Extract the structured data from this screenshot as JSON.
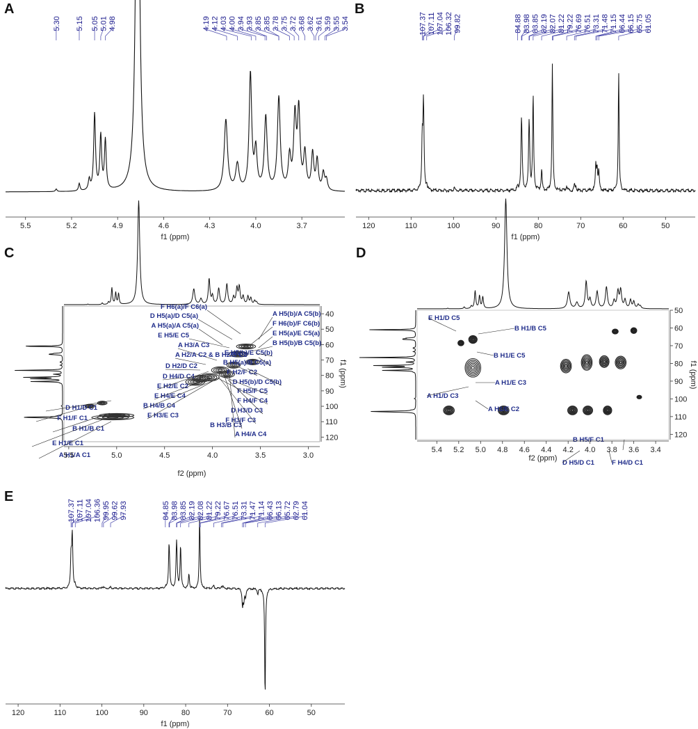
{
  "panels": [
    {
      "id": "A",
      "label": "A"
    },
    {
      "id": "B",
      "label": "B"
    },
    {
      "id": "C",
      "label": "C"
    },
    {
      "id": "D",
      "label": "D"
    },
    {
      "id": "E",
      "label": "E"
    }
  ],
  "chart_data": [
    {
      "panel": "A",
      "type": "line",
      "title": "",
      "xlabel": "f1 (ppm)",
      "ylabel": "",
      "xlim": [
        5.63,
        3.42
      ],
      "x_ticks": [
        "5.5",
        "5.2",
        "4.9",
        "4.6",
        "4.3",
        "4.0",
        "3.7"
      ],
      "peak_labels": [
        "5.30",
        "5.15",
        "5.05",
        "5.01",
        "4.98",
        "4.19",
        "4.12",
        "4.03",
        "4.00",
        "3.94",
        "3.93",
        "3.85",
        "3.85",
        "3.78",
        "3.75",
        "3.72",
        "3.68",
        "3.62",
        "3.61",
        "3.59",
        "3.55",
        "3.54"
      ],
      "peaks": [
        {
          "x": 5.3,
          "y": 0.012,
          "w": 0.006
        },
        {
          "x": 5.15,
          "y": 0.035,
          "w": 0.006
        },
        {
          "x": 5.085,
          "y": 0.05,
          "w": 0.007
        },
        {
          "x": 5.05,
          "y": 0.355,
          "w": 0.007
        },
        {
          "x": 5.01,
          "y": 0.25,
          "w": 0.007
        },
        {
          "x": 4.98,
          "y": 0.23,
          "w": 0.007
        },
        {
          "x": 4.77,
          "y": 2.2,
          "w": 0.013
        },
        {
          "x": 4.195,
          "y": 0.33,
          "w": 0.013
        },
        {
          "x": 4.12,
          "y": 0.12,
          "w": 0.013
        },
        {
          "x": 4.035,
          "y": 0.54,
          "w": 0.01
        },
        {
          "x": 4.0,
          "y": 0.18,
          "w": 0.01
        },
        {
          "x": 3.935,
          "y": 0.34,
          "w": 0.011
        },
        {
          "x": 3.85,
          "y": 0.43,
          "w": 0.011
        },
        {
          "x": 3.78,
          "y": 0.15,
          "w": 0.01
        },
        {
          "x": 3.745,
          "y": 0.33,
          "w": 0.01
        },
        {
          "x": 3.72,
          "y": 0.36,
          "w": 0.01
        },
        {
          "x": 3.68,
          "y": 0.17,
          "w": 0.01
        },
        {
          "x": 3.63,
          "y": 0.17,
          "w": 0.009
        },
        {
          "x": 3.6,
          "y": 0.14,
          "w": 0.009
        },
        {
          "x": 3.56,
          "y": 0.08,
          "w": 0.009
        },
        {
          "x": 3.54,
          "y": 0.05,
          "w": 0.009
        }
      ]
    },
    {
      "panel": "B",
      "type": "line",
      "title": "",
      "xlabel": "f1 (ppm)",
      "ylabel": "",
      "xlim": [
        123,
        43
      ],
      "x_ticks": [
        "120",
        "110",
        "100",
        "90",
        "80",
        "70",
        "60",
        "50"
      ],
      "peak_labels": [
        "107.37",
        "107.11",
        "107.04",
        "106.32",
        "99.82",
        "84.88",
        "83.98",
        "83.85",
        "82.19",
        "82.07",
        "81.22",
        "79.22",
        "76.69",
        "76.51",
        "73.31",
        "71.48",
        "71.15",
        "66.44",
        "66.15",
        "65.75",
        "61.05"
      ],
      "peaks": [
        {
          "x": 107.37,
          "y": 0.48,
          "w": 0.14
        },
        {
          "x": 107.11,
          "y": 0.45,
          "w": 0.14
        },
        {
          "x": 107.04,
          "y": 0.42,
          "w": 0.14
        },
        {
          "x": 106.32,
          "y": 0.05,
          "w": 0.14
        },
        {
          "x": 99.82,
          "y": 0.03,
          "w": 0.14
        },
        {
          "x": 84.88,
          "y": 0.03,
          "w": 0.14
        },
        {
          "x": 83.98,
          "y": 0.58,
          "w": 0.14
        },
        {
          "x": 83.85,
          "y": 0.2,
          "w": 0.14
        },
        {
          "x": 82.19,
          "y": 0.55,
          "w": 0.14
        },
        {
          "x": 82.07,
          "y": 0.2,
          "w": 0.14
        },
        {
          "x": 81.22,
          "y": 0.9,
          "w": 0.14
        },
        {
          "x": 79.22,
          "y": 0.2,
          "w": 0.14
        },
        {
          "x": 76.69,
          "y": 1.18,
          "w": 0.12
        },
        {
          "x": 76.51,
          "y": 0.1,
          "w": 0.12
        },
        {
          "x": 73.31,
          "y": 0.05,
          "w": 0.14
        },
        {
          "x": 71.48,
          "y": 0.05,
          "w": 0.14
        },
        {
          "x": 71.15,
          "y": 0.04,
          "w": 0.14
        },
        {
          "x": 66.44,
          "y": 0.23,
          "w": 0.14
        },
        {
          "x": 66.15,
          "y": 0.2,
          "w": 0.14
        },
        {
          "x": 65.75,
          "y": 0.18,
          "w": 0.14
        },
        {
          "x": 61.05,
          "y": 1.16,
          "w": 0.12
        }
      ]
    },
    {
      "panel": "C",
      "type": "heatmap",
      "title": "",
      "xlabel": "f2 (ppm)",
      "ylabel": "f1 (ppm)",
      "xlim": [
        5.55,
        2.88
      ],
      "ylim": [
        123,
        35
      ],
      "x_ticks": [
        "5.5",
        "5.0",
        "4.5",
        "4.0",
        "3.5",
        "3.0"
      ],
      "y_ticks": [
        "40",
        "50",
        "60",
        "70",
        "80",
        "90",
        "100",
        "110",
        "120"
      ],
      "cross_peaks": [
        {
          "x": 5.04,
          "y": 107.3,
          "w": 0.22,
          "h": 1.5
        },
        {
          "x": 5.0,
          "y": 105.9,
          "w": 0.18,
          "h": 1.2
        },
        {
          "x": 5.28,
          "y": 99.9,
          "w": 0.05,
          "h": 1.2
        },
        {
          "x": 5.15,
          "y": 97.9,
          "w": 0.05,
          "h": 1.2
        },
        {
          "x": 4.18,
          "y": 84.2,
          "w": 0.1,
          "h": 2.2
        },
        {
          "x": 4.12,
          "y": 82.1,
          "w": 0.09,
          "h": 2.2
        },
        {
          "x": 4.03,
          "y": 81.2,
          "w": 0.1,
          "h": 2.4
        },
        {
          "x": 3.92,
          "y": 76.6,
          "w": 0.09,
          "h": 2.2
        },
        {
          "x": 3.85,
          "y": 79.2,
          "w": 0.08,
          "h": 2.2
        },
        {
          "x": 3.78,
          "y": 73.3,
          "w": 0.07,
          "h": 2
        },
        {
          "x": 3.73,
          "y": 66.2,
          "w": 0.1,
          "h": 1.8
        },
        {
          "x": 3.65,
          "y": 61.2,
          "w": 0.1,
          "h": 1.6
        },
        {
          "x": 3.58,
          "y": 71.3,
          "w": 0.07,
          "h": 1.8
        }
      ],
      "annotations": [
        "F H6(a)/F C6(a)",
        "A H5(b)/A C5(b)",
        "D H5(a)/D C5(a)",
        "F H6(b)/F C6(b)",
        "A H5(a)/A C5(a)",
        "E H5(a)/E C5(a)",
        "E H5/E C5",
        "B H5(b)/B C5(b)",
        "E H5(b)/E C5(b)",
        "A H3/A C3",
        "B H5(a)/B C5(a)",
        "A H2/A C2 & B H2/B C2",
        "F H2/F C2",
        "D H2/D C2",
        "D H5(b)/D C5(b)",
        "D H4/D C4",
        "F H5/F C5",
        "E H2/E C2",
        "F H4/F C4",
        "E H4/E C4",
        "D H3/D C3",
        "B H4/B C4",
        "F H3/F C3",
        "E H3/E C3",
        "B H3/B C3",
        "A H4/A C4",
        "F H1/F C1",
        "D H1/D C1",
        "B H1/B C1",
        "E H1/E C1",
        "A H1/A C1"
      ]
    },
    {
      "panel": "D",
      "type": "heatmap",
      "title": "",
      "xlabel": "f2 (ppm)",
      "ylabel": "f1 (ppm)",
      "xlim": [
        5.58,
        3.28
      ],
      "ylim": [
        123,
        50
      ],
      "x_ticks": [
        "5.4",
        "5.2",
        "5.0",
        "4.8",
        "4.6",
        "4.4",
        "4.2",
        "4.0",
        "3.8",
        "3.6",
        "3.4"
      ],
      "y_ticks": [
        "50",
        "60",
        "70",
        "80",
        "90",
        "100",
        "110",
        "120"
      ],
      "cross_peaks": [
        {
          "x": 5.29,
          "y": 106.5,
          "w": 0.09,
          "h": 4.5
        },
        {
          "x": 4.79,
          "y": 106.5,
          "w": 0.09,
          "h": 4.5
        },
        {
          "x": 4.16,
          "y": 106.5,
          "w": 0.08,
          "h": 4.5
        },
        {
          "x": 4.02,
          "y": 106.5,
          "w": 0.08,
          "h": 4.5
        },
        {
          "x": 3.84,
          "y": 106.5,
          "w": 0.07,
          "h": 4.5
        },
        {
          "x": 5.07,
          "y": 82.5,
          "w": 0.13,
          "h": 9.5
        },
        {
          "x": 5.07,
          "y": 66.5,
          "w": 0.07,
          "h": 4
        },
        {
          "x": 5.18,
          "y": 68.5,
          "w": 0.05,
          "h": 2.8
        },
        {
          "x": 4.22,
          "y": 81.5,
          "w": 0.09,
          "h": 7
        },
        {
          "x": 4.03,
          "y": 79.5,
          "w": 0.09,
          "h": 8
        },
        {
          "x": 3.87,
          "y": 79,
          "w": 0.08,
          "h": 6
        },
        {
          "x": 3.72,
          "y": 79.5,
          "w": 0.09,
          "h": 6.5
        },
        {
          "x": 3.6,
          "y": 61.5,
          "w": 0.05,
          "h": 3
        },
        {
          "x": 3.77,
          "y": 62,
          "w": 0.05,
          "h": 2.5
        },
        {
          "x": 3.55,
          "y": 99,
          "w": 0.04,
          "h": 1.8
        }
      ],
      "annotations": [
        "E H1/D C5",
        "B H1/B C5",
        "B H1/E C5",
        "A H1/E C3",
        "A H1/D C3",
        "A H1/E C2",
        "B H5/F C1",
        "D H5/D C1",
        "F H4/D C1"
      ]
    },
    {
      "panel": "E",
      "type": "line",
      "title": "",
      "xlabel": "f1 (ppm)",
      "ylabel": "",
      "xlim": [
        123,
        42
      ],
      "x_ticks": [
        "120",
        "110",
        "100",
        "90",
        "80",
        "70",
        "60",
        "50"
      ],
      "peak_labels": [
        "107.37",
        "107.11",
        "107.04",
        "106.36",
        "99.95",
        "99.62",
        "97.93",
        "84.85",
        "83.98",
        "83.85",
        "82.19",
        "82.08",
        "81.22",
        "79.22",
        "76.67",
        "76.51",
        "73.31",
        "71.47",
        "71.14",
        "66.43",
        "66.13",
        "65.72",
        "62.79",
        "61.04"
      ],
      "peaks": [
        {
          "x": 107.37,
          "y": 0.75,
          "w": 0.14
        },
        {
          "x": 107.11,
          "y": 0.7,
          "w": 0.14
        },
        {
          "x": 107.04,
          "y": 0.62,
          "w": 0.14
        },
        {
          "x": 106.36,
          "y": 0.08,
          "w": 0.14
        },
        {
          "x": 99.95,
          "y": 0.04,
          "w": 0.14
        },
        {
          "x": 99.62,
          "y": 0.03,
          "w": 0.14
        },
        {
          "x": 97.93,
          "y": 0.03,
          "w": 0.14
        },
        {
          "x": 84.85,
          "y": 0.04,
          "w": 0.14
        },
        {
          "x": 83.98,
          "y": 0.88,
          "w": 0.14
        },
        {
          "x": 83.85,
          "y": 0.3,
          "w": 0.14
        },
        {
          "x": 82.19,
          "y": 0.9,
          "w": 0.14
        },
        {
          "x": 82.08,
          "y": 0.3,
          "w": 0.14
        },
        {
          "x": 81.22,
          "y": 1.0,
          "w": 0.14
        },
        {
          "x": 79.22,
          "y": 0.35,
          "w": 0.14
        },
        {
          "x": 76.67,
          "y": 1.65,
          "w": 0.12
        },
        {
          "x": 76.51,
          "y": 0.1,
          "w": 0.12
        },
        {
          "x": 73.31,
          "y": 0.07,
          "w": 0.14
        },
        {
          "x": 71.47,
          "y": 0.06,
          "w": 0.14
        },
        {
          "x": 71.14,
          "y": 0.05,
          "w": 0.14
        },
        {
          "x": 66.43,
          "y": -0.38,
          "w": 0.14
        },
        {
          "x": 66.13,
          "y": -0.3,
          "w": 0.14
        },
        {
          "x": 65.72,
          "y": -0.2,
          "w": 0.14
        },
        {
          "x": 62.79,
          "y": -0.12,
          "w": 0.14
        },
        {
          "x": 61.04,
          "y": -2.55,
          "w": 0.12
        }
      ]
    }
  ]
}
